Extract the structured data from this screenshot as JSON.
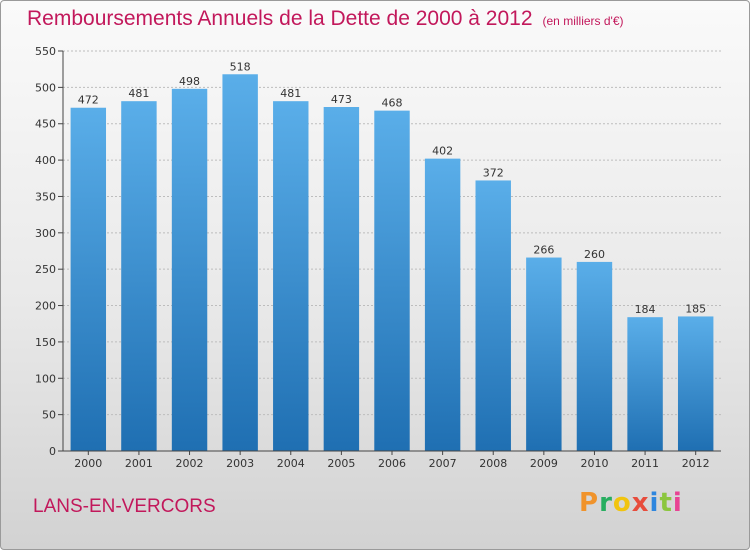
{
  "chart_data": {
    "type": "bar",
    "title": "Remboursements Annuels de la Dette de 2000 à 2012",
    "subtitle": "(en milliers d'€)",
    "categories": [
      "2000",
      "2001",
      "2002",
      "2003",
      "2004",
      "2005",
      "2006",
      "2007",
      "2008",
      "2009",
      "2010",
      "2011",
      "2012"
    ],
    "values": [
      472,
      481,
      498,
      518,
      481,
      473,
      468,
      402,
      372,
      266,
      260,
      184,
      185
    ],
    "ylim": [
      0,
      550
    ],
    "yticks": [
      0,
      50,
      100,
      150,
      200,
      250,
      300,
      350,
      400,
      450,
      500,
      550
    ],
    "xlabel": "",
    "ylabel": "",
    "grid": true
  },
  "commune": "LANS-EN-VERCORS",
  "logo": {
    "letters": [
      "P",
      "r",
      "o",
      "x",
      "i",
      "t",
      "i"
    ],
    "colors": [
      "#f0932b",
      "#27ae60",
      "#f1c40f",
      "#e74c3c",
      "#2e86de",
      "#8cc63f",
      "#e84393"
    ]
  },
  "colors": {
    "bar_top": "#5aaee9",
    "bar_bottom": "#1f6fb2",
    "accent": "#c2185b",
    "grid": "#bdbdbd"
  }
}
